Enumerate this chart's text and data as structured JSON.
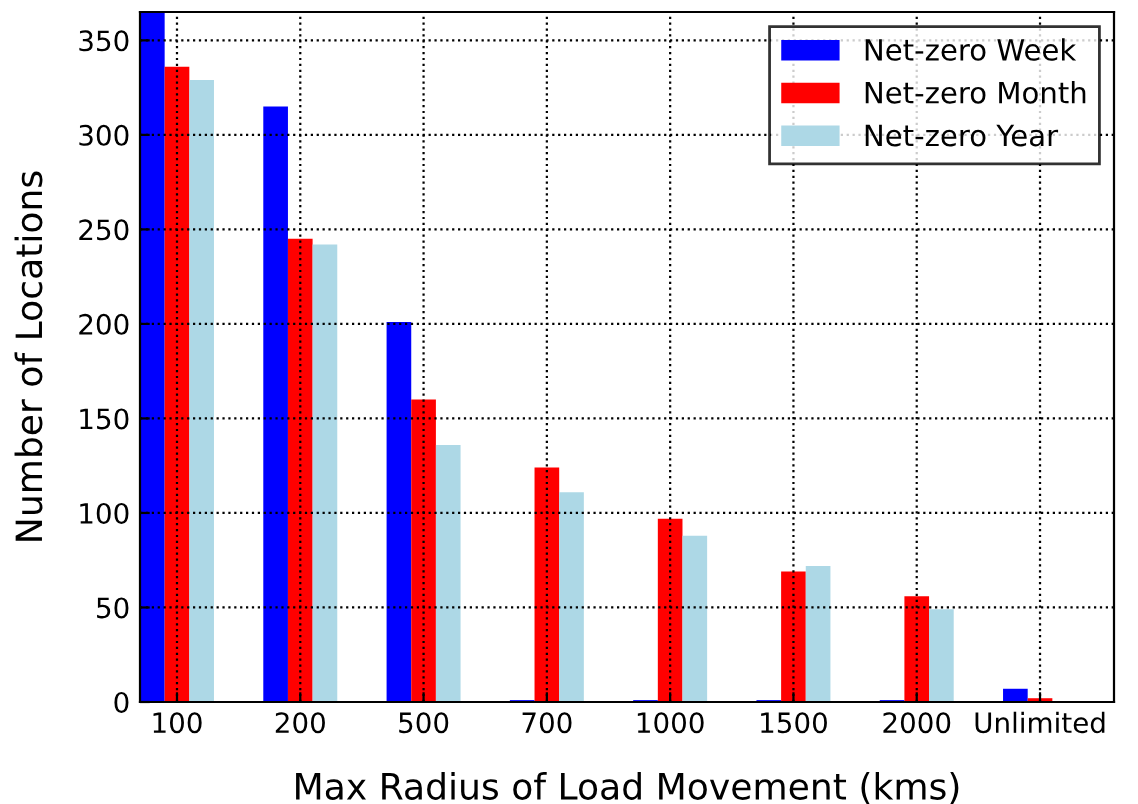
{
  "chart_data": {
    "type": "bar",
    "xlabel": "Max Radius of Load Movement (kms)",
    "ylabel": "Number of Locations",
    "categories": [
      "100",
      "200",
      "500",
      "700",
      "1000",
      "1500",
      "2000",
      "Unlimited"
    ],
    "series": [
      {
        "name": "Net-zero Week",
        "color": "#0000ff",
        "values": [
          365,
          315,
          201,
          1,
          1,
          1,
          1,
          7
        ]
      },
      {
        "name": "Net-zero Month",
        "color": "#ff0000",
        "values": [
          336,
          245,
          160,
          124,
          97,
          69,
          56,
          2
        ]
      },
      {
        "name": "Net-zero Year",
        "color": "#add8e6",
        "values": [
          329,
          242,
          136,
          111,
          88,
          72,
          49,
          0
        ]
      }
    ],
    "ylim": [
      0,
      365
    ],
    "yticks": [
      0,
      50,
      100,
      150,
      200,
      250,
      300,
      350
    ],
    "grid": true,
    "legend": "top right"
  }
}
